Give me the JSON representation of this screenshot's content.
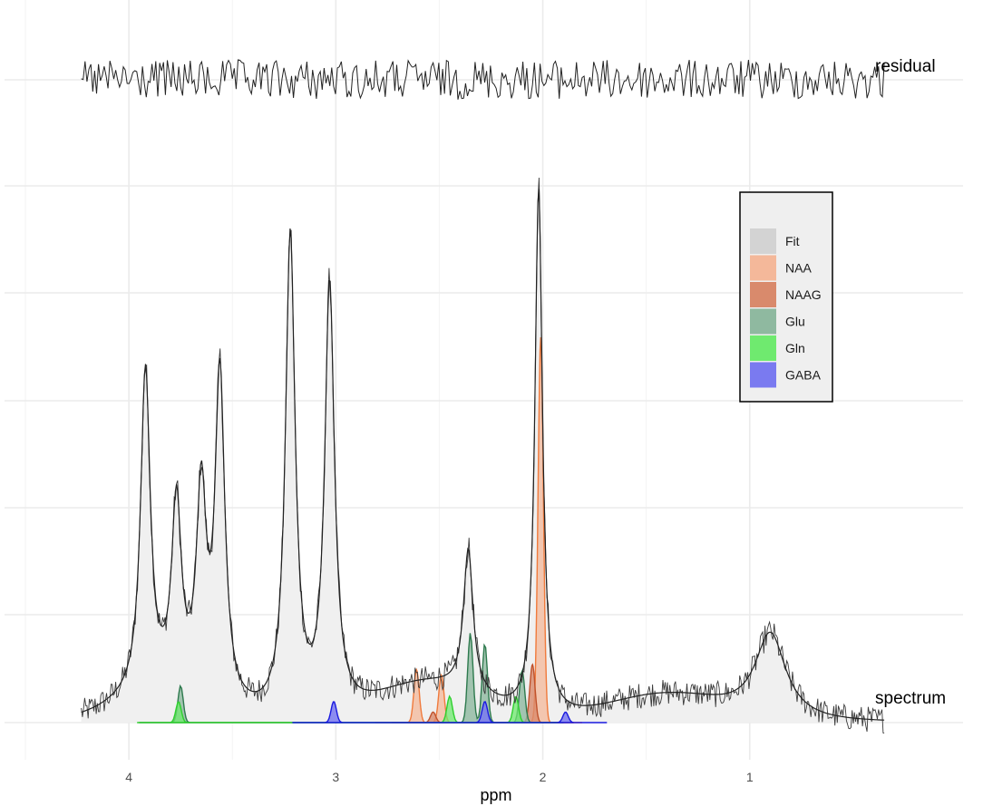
{
  "chart_data": {
    "type": "area",
    "xlabel": "ppm",
    "x_reversed": true,
    "xlim": [
      4.5,
      0.0
    ],
    "x_ticks": [
      4,
      3,
      2,
      1
    ],
    "grid": true,
    "legend_position": "top-right",
    "trace_labels": {
      "residual": "residual",
      "spectrum": "spectrum"
    },
    "legend": [
      {
        "name": "Fit",
        "color": "#d3d3d3"
      },
      {
        "name": "NAA",
        "color": "#f4b89a"
      },
      {
        "name": "NAAG",
        "color": "#d98a6c"
      },
      {
        "name": "Glu",
        "color": "#8fb9a0"
      },
      {
        "name": "Gln",
        "color": "#6fea6f"
      },
      {
        "name": "GABA",
        "color": "#7a7af0"
      }
    ],
    "spectrum_peaks": [
      {
        "ppm": 3.92,
        "height": 0.61
      },
      {
        "ppm": 3.77,
        "height": 0.35
      },
      {
        "ppm": 3.65,
        "height": 0.38
      },
      {
        "ppm": 3.56,
        "height": 0.62
      },
      {
        "ppm": 3.22,
        "height": 0.91
      },
      {
        "ppm": 3.03,
        "height": 0.81
      },
      {
        "ppm": 2.36,
        "height": 0.27
      },
      {
        "ppm": 2.02,
        "height": 1.0
      },
      {
        "ppm": 0.9,
        "height": 0.16
      }
    ],
    "metabolites": [
      {
        "name": "NAA",
        "peaks": [
          {
            "ppm": 2.01,
            "height": 0.73
          },
          {
            "ppm": 2.61,
            "height": 0.1
          },
          {
            "ppm": 2.49,
            "height": 0.09
          }
        ]
      },
      {
        "name": "NAAG",
        "peaks": [
          {
            "ppm": 2.05,
            "height": 0.11
          },
          {
            "ppm": 2.53,
            "height": 0.02
          }
        ]
      },
      {
        "name": "Glu",
        "peaks": [
          {
            "ppm": 3.75,
            "height": 0.07
          },
          {
            "ppm": 2.35,
            "height": 0.17
          },
          {
            "ppm": 2.28,
            "height": 0.15
          },
          {
            "ppm": 2.1,
            "height": 0.1
          }
        ]
      },
      {
        "name": "Gln",
        "peaks": [
          {
            "ppm": 3.76,
            "height": 0.04
          },
          {
            "ppm": 2.45,
            "height": 0.05
          },
          {
            "ppm": 2.13,
            "height": 0.05
          }
        ]
      },
      {
        "name": "GABA",
        "peaks": [
          {
            "ppm": 3.01,
            "height": 0.04
          },
          {
            "ppm": 2.28,
            "height": 0.04
          },
          {
            "ppm": 1.89,
            "height": 0.02
          }
        ]
      }
    ]
  }
}
